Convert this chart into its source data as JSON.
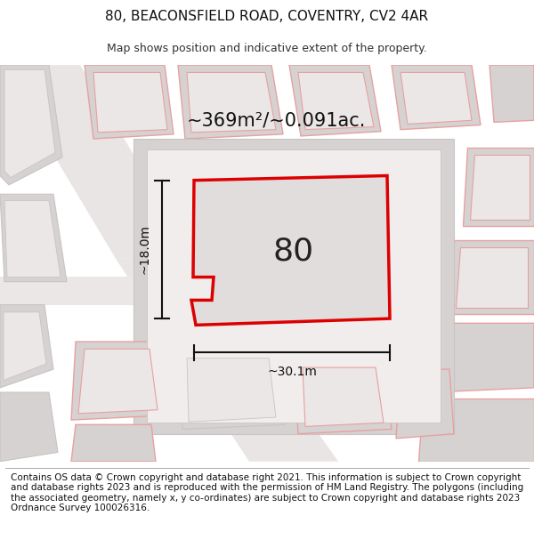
{
  "title": "80, BEACONSFIELD ROAD, COVENTRY, CV2 4AR",
  "subtitle": "Map shows position and indicative extent of the property.",
  "footer": "Contains OS data © Crown copyright and database right 2021. This information is subject to Crown copyright and database rights 2023 and is reproduced with the permission of HM Land Registry. The polygons (including the associated geometry, namely x, y co-ordinates) are subject to Crown copyright and database rights 2023 Ordnance Survey 100026316.",
  "area_label": "~369m²/~0.091ac.",
  "width_label": "~30.1m",
  "height_label": "~18.0m",
  "plot_number": "80",
  "map_bg": "#f0edec",
  "parcel_fill": "#d6d2d1",
  "parcel_edge": "#e8a0a0",
  "parcel_edge_gray": "#c8c4c3",
  "plot_fill": "#e0dddc",
  "plot_border": "#dd0000",
  "dim_color": "#111111",
  "title_fontsize": 11,
  "subtitle_fontsize": 9,
  "footer_fontsize": 7.5
}
